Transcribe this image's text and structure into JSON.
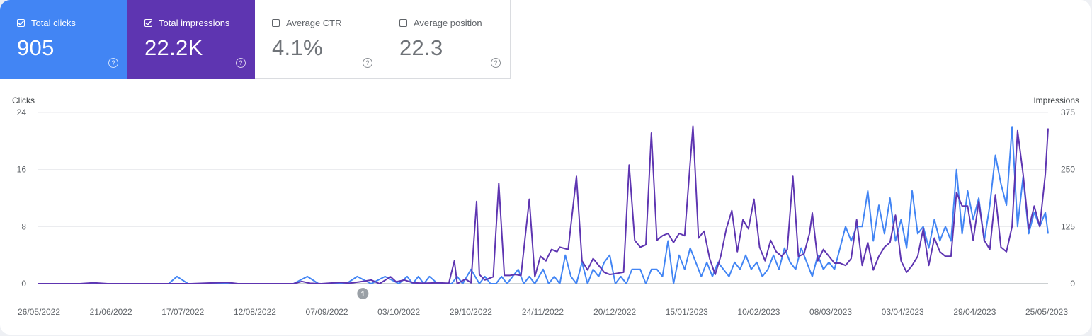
{
  "cards": [
    {
      "label": "Total clicks",
      "value": "905",
      "checked": true
    },
    {
      "label": "Total impressions",
      "value": "22.2K",
      "checked": true
    },
    {
      "label": "Average CTR",
      "value": "4.1%",
      "checked": false
    },
    {
      "label": "Average position",
      "value": "22.3",
      "checked": false
    }
  ],
  "help_glyph": "?",
  "colors": {
    "clicks": "#4285f4",
    "impressions": "#5e35b1",
    "grid": "#e8eaed",
    "axis_text": "#5f6368",
    "annotation": "#9aa0a6"
  },
  "chart_data": {
    "type": "line",
    "xlabel": "",
    "left_axis": {
      "label": "Clicks",
      "ticks": [
        "0",
        "8",
        "16",
        "24"
      ],
      "range": [
        0,
        24
      ]
    },
    "right_axis": {
      "label": "Impressions",
      "ticks": [
        "0",
        "125",
        "250",
        "375"
      ],
      "range": [
        0,
        375
      ]
    },
    "x_tick_labels": [
      "26/05/2022",
      "21/06/2022",
      "17/07/2022",
      "12/08/2022",
      "07/09/2022",
      "03/10/2022",
      "29/10/2022",
      "24/11/2022",
      "20/12/2022",
      "15/01/2023",
      "10/02/2023",
      "08/03/2023",
      "03/04/2023",
      "29/04/2023",
      "25/05/2023"
    ],
    "x_range": [
      "26/05/2022",
      "25/05/2023"
    ],
    "grid": true,
    "annotation": {
      "label": "1",
      "date": "20/09/2022"
    },
    "series": [
      {
        "name": "Clicks",
        "axis": "left",
        "color": "#4285f4",
        "points": [
          [
            "26/05/2022",
            0
          ],
          [
            "10/06/2022",
            0
          ],
          [
            "12/07/2022",
            0
          ],
          [
            "15/07/2022",
            1
          ],
          [
            "19/07/2022",
            0
          ],
          [
            "10/08/2022",
            0
          ],
          [
            "26/08/2022",
            0
          ],
          [
            "31/08/2022",
            1
          ],
          [
            "04/09/2022",
            0
          ],
          [
            "14/09/2022",
            0
          ],
          [
            "18/09/2022",
            1
          ],
          [
            "23/09/2022",
            0
          ],
          [
            "28/09/2022",
            1
          ],
          [
            "03/10/2022",
            0
          ],
          [
            "06/10/2022",
            1
          ],
          [
            "08/10/2022",
            0
          ],
          [
            "10/10/2022",
            1
          ],
          [
            "12/10/2022",
            0
          ],
          [
            "14/10/2022",
            1
          ],
          [
            "17/10/2022",
            0
          ],
          [
            "22/10/2022",
            0
          ],
          [
            "24/10/2022",
            1
          ],
          [
            "26/10/2022",
            0
          ],
          [
            "29/10/2022",
            2
          ],
          [
            "01/11/2022",
            0
          ],
          [
            "03/11/2022",
            1
          ],
          [
            "05/11/2022",
            0
          ],
          [
            "07/11/2022",
            0
          ],
          [
            "09/11/2022",
            1
          ],
          [
            "11/11/2022",
            0
          ],
          [
            "15/11/2022",
            2
          ],
          [
            "17/11/2022",
            0
          ],
          [
            "19/11/2022",
            1
          ],
          [
            "21/11/2022",
            0
          ],
          [
            "24/11/2022",
            2
          ],
          [
            "26/11/2022",
            0
          ],
          [
            "28/11/2022",
            1
          ],
          [
            "30/11/2022",
            0
          ],
          [
            "02/12/2022",
            4
          ],
          [
            "04/12/2022",
            1
          ],
          [
            "06/12/2022",
            0
          ],
          [
            "08/12/2022",
            3
          ],
          [
            "10/12/2022",
            0
          ],
          [
            "12/12/2022",
            2
          ],
          [
            "14/12/2022",
            1
          ],
          [
            "16/12/2022",
            3
          ],
          [
            "18/12/2022",
            4
          ],
          [
            "20/12/2022",
            0
          ],
          [
            "22/12/2022",
            1
          ],
          [
            "24/12/2022",
            0
          ],
          [
            "26/12/2022",
            2
          ],
          [
            "29/12/2022",
            2
          ],
          [
            "31/12/2022",
            0
          ],
          [
            "02/01/2023",
            2
          ],
          [
            "04/01/2023",
            2
          ],
          [
            "06/01/2023",
            1
          ],
          [
            "08/01/2023",
            6
          ],
          [
            "10/01/2023",
            0
          ],
          [
            "12/01/2023",
            4
          ],
          [
            "14/01/2023",
            2
          ],
          [
            "16/01/2023",
            5
          ],
          [
            "18/01/2023",
            3
          ],
          [
            "20/01/2023",
            1
          ],
          [
            "22/01/2023",
            3
          ],
          [
            "24/01/2023",
            1
          ],
          [
            "26/01/2023",
            3
          ],
          [
            "28/01/2023",
            2
          ],
          [
            "30/01/2023",
            1
          ],
          [
            "01/02/2023",
            3
          ],
          [
            "03/02/2023",
            2
          ],
          [
            "05/02/2023",
            4
          ],
          [
            "07/02/2023",
            2
          ],
          [
            "09/02/2023",
            3
          ],
          [
            "11/02/2023",
            1
          ],
          [
            "13/02/2023",
            2
          ],
          [
            "15/02/2023",
            4
          ],
          [
            "17/02/2023",
            2
          ],
          [
            "19/02/2023",
            5
          ],
          [
            "21/02/2023",
            3
          ],
          [
            "23/02/2023",
            2
          ],
          [
            "25/02/2023",
            5
          ],
          [
            "27/02/2023",
            3
          ],
          [
            "01/03/2023",
            1
          ],
          [
            "03/03/2023",
            4
          ],
          [
            "05/03/2023",
            2
          ],
          [
            "07/03/2023",
            3
          ],
          [
            "09/03/2023",
            2
          ],
          [
            "11/03/2023",
            5
          ],
          [
            "13/03/2023",
            8
          ],
          [
            "15/03/2023",
            6
          ],
          [
            "17/03/2023",
            8
          ],
          [
            "19/03/2023",
            8
          ],
          [
            "21/03/2023",
            13
          ],
          [
            "23/03/2023",
            6
          ],
          [
            "25/03/2023",
            11
          ],
          [
            "27/03/2023",
            7
          ],
          [
            "29/03/2023",
            12
          ],
          [
            "31/03/2023",
            6
          ],
          [
            "02/04/2023",
            9
          ],
          [
            "04/04/2023",
            5
          ],
          [
            "06/04/2023",
            13
          ],
          [
            "08/04/2023",
            7
          ],
          [
            "10/04/2023",
            8
          ],
          [
            "12/04/2023",
            5
          ],
          [
            "14/04/2023",
            9
          ],
          [
            "16/04/2023",
            6
          ],
          [
            "18/04/2023",
            8
          ],
          [
            "20/04/2023",
            6
          ],
          [
            "22/04/2023",
            16
          ],
          [
            "24/04/2023",
            7
          ],
          [
            "26/04/2023",
            13
          ],
          [
            "28/04/2023",
            9
          ],
          [
            "30/04/2023",
            12
          ],
          [
            "02/05/2023",
            6
          ],
          [
            "04/05/2023",
            11
          ],
          [
            "06/05/2023",
            18
          ],
          [
            "08/05/2023",
            14
          ],
          [
            "10/05/2023",
            11
          ],
          [
            "12/05/2023",
            22
          ],
          [
            "14/05/2023",
            8
          ],
          [
            "16/05/2023",
            15
          ],
          [
            "18/05/2023",
            7
          ],
          [
            "20/05/2023",
            10
          ],
          [
            "22/05/2023",
            8
          ],
          [
            "24/05/2023",
            10
          ],
          [
            "25/05/2023",
            7
          ]
        ]
      },
      {
        "name": "Impressions",
        "axis": "right",
        "color": "#5e35b1",
        "points": [
          [
            "26/05/2022",
            0
          ],
          [
            "10/06/2022",
            0
          ],
          [
            "15/06/2022",
            2
          ],
          [
            "20/06/2022",
            0
          ],
          [
            "20/07/2022",
            0
          ],
          [
            "02/08/2022",
            3
          ],
          [
            "06/08/2022",
            0
          ],
          [
            "26/08/2022",
            0
          ],
          [
            "29/08/2022",
            5
          ],
          [
            "01/09/2022",
            1
          ],
          [
            "05/09/2022",
            0
          ],
          [
            "12/09/2022",
            3
          ],
          [
            "15/09/2022",
            1
          ],
          [
            "20/09/2022",
            5
          ],
          [
            "23/09/2022",
            8
          ],
          [
            "26/09/2022",
            0
          ],
          [
            "30/09/2022",
            15
          ],
          [
            "02/10/2022",
            4
          ],
          [
            "05/10/2022",
            8
          ],
          [
            "08/10/2022",
            2
          ],
          [
            "12/10/2022",
            1
          ],
          [
            "17/10/2022",
            2
          ],
          [
            "21/10/2022",
            1
          ],
          [
            "23/10/2022",
            50
          ],
          [
            "24/10/2022",
            0
          ],
          [
            "27/10/2022",
            10
          ],
          [
            "29/10/2022",
            2
          ],
          [
            "31/10/2022",
            180
          ],
          [
            "01/11/2022",
            20
          ],
          [
            "03/11/2022",
            8
          ],
          [
            "06/11/2022",
            15
          ],
          [
            "08/11/2022",
            220
          ],
          [
            "10/11/2022",
            18
          ],
          [
            "12/11/2022",
            18
          ],
          [
            "14/11/2022",
            20
          ],
          [
            "16/11/2022",
            18
          ],
          [
            "19/11/2022",
            185
          ],
          [
            "21/11/2022",
            15
          ],
          [
            "23/11/2022",
            60
          ],
          [
            "25/11/2022",
            50
          ],
          [
            "27/11/2022",
            75
          ],
          [
            "29/11/2022",
            70
          ],
          [
            "30/11/2022",
            80
          ],
          [
            "03/12/2022",
            75
          ],
          [
            "06/12/2022",
            235
          ],
          [
            "08/12/2022",
            50
          ],
          [
            "10/12/2022",
            30
          ],
          [
            "12/12/2022",
            55
          ],
          [
            "14/12/2022",
            40
          ],
          [
            "16/12/2022",
            25
          ],
          [
            "18/12/2022",
            20
          ],
          [
            "20/12/2022",
            22
          ],
          [
            "23/12/2022",
            25
          ],
          [
            "25/12/2022",
            260
          ],
          [
            "27/12/2022",
            95
          ],
          [
            "29/12/2022",
            80
          ],
          [
            "31/12/2022",
            85
          ],
          [
            "02/01/2023",
            330
          ],
          [
            "04/01/2023",
            95
          ],
          [
            "06/01/2023",
            105
          ],
          [
            "08/01/2023",
            110
          ],
          [
            "10/01/2023",
            90
          ],
          [
            "12/01/2023",
            110
          ],
          [
            "14/01/2023",
            105
          ],
          [
            "17/01/2023",
            345
          ],
          [
            "19/01/2023",
            100
          ],
          [
            "21/01/2023",
            115
          ],
          [
            "23/01/2023",
            55
          ],
          [
            "25/01/2023",
            20
          ],
          [
            "27/01/2023",
            60
          ],
          [
            "29/01/2023",
            120
          ],
          [
            "31/01/2023",
            160
          ],
          [
            "02/02/2023",
            70
          ],
          [
            "04/02/2023",
            140
          ],
          [
            "06/02/2023",
            120
          ],
          [
            "08/02/2023",
            185
          ],
          [
            "10/02/2023",
            80
          ],
          [
            "12/02/2023",
            50
          ],
          [
            "14/02/2023",
            95
          ],
          [
            "16/02/2023",
            70
          ],
          [
            "18/02/2023",
            60
          ],
          [
            "20/02/2023",
            75
          ],
          [
            "22/02/2023",
            235
          ],
          [
            "24/02/2023",
            60
          ],
          [
            "26/02/2023",
            65
          ],
          [
            "28/02/2023",
            110
          ],
          [
            "01/03/2023",
            155
          ],
          [
            "03/03/2023",
            50
          ],
          [
            "05/03/2023",
            75
          ],
          [
            "07/03/2023",
            60
          ],
          [
            "09/03/2023",
            45
          ],
          [
            "11/03/2023",
            45
          ],
          [
            "13/03/2023",
            40
          ],
          [
            "15/03/2023",
            55
          ],
          [
            "17/03/2023",
            140
          ],
          [
            "19/03/2023",
            40
          ],
          [
            "21/03/2023",
            90
          ],
          [
            "23/03/2023",
            30
          ],
          [
            "25/03/2023",
            60
          ],
          [
            "27/03/2023",
            80
          ],
          [
            "29/03/2023",
            90
          ],
          [
            "31/03/2023",
            150
          ],
          [
            "02/04/2023",
            50
          ],
          [
            "04/04/2023",
            25
          ],
          [
            "06/04/2023",
            40
          ],
          [
            "08/04/2023",
            60
          ],
          [
            "10/04/2023",
            120
          ],
          [
            "12/04/2023",
            40
          ],
          [
            "14/04/2023",
            100
          ],
          [
            "16/04/2023",
            70
          ],
          [
            "18/04/2023",
            60
          ],
          [
            "20/04/2023",
            60
          ],
          [
            "22/04/2023",
            200
          ],
          [
            "24/04/2023",
            170
          ],
          [
            "26/04/2023",
            170
          ],
          [
            "28/04/2023",
            95
          ],
          [
            "30/04/2023",
            180
          ],
          [
            "02/05/2023",
            95
          ],
          [
            "04/05/2023",
            75
          ],
          [
            "06/05/2023",
            195
          ],
          [
            "08/05/2023",
            80
          ],
          [
            "10/05/2023",
            70
          ],
          [
            "12/05/2023",
            125
          ],
          [
            "14/05/2023",
            335
          ],
          [
            "16/05/2023",
            240
          ],
          [
            "18/05/2023",
            120
          ],
          [
            "20/05/2023",
            170
          ],
          [
            "22/05/2023",
            125
          ],
          [
            "24/05/2023",
            240
          ],
          [
            "25/05/2023",
            340
          ]
        ]
      }
    ]
  }
}
